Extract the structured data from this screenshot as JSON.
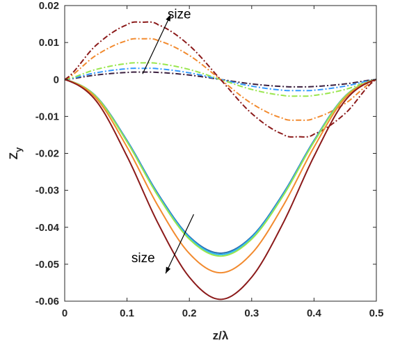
{
  "chart_data": {
    "type": "line",
    "title": "",
    "xlabel": "z/λ",
    "ylabel": "Z_y",
    "xlim": [
      0,
      0.5
    ],
    "ylim": [
      -0.06,
      0.02
    ],
    "xticks": [
      0,
      0.1,
      0.2,
      0.3,
      0.4,
      0.5
    ],
    "xtick_labels": [
      "0",
      "0.1",
      "0.2",
      "0.3",
      "0.4",
      "0.5"
    ],
    "yticks": [
      0.02,
      0.01,
      0,
      -0.01,
      -0.02,
      -0.03,
      -0.04,
      -0.05,
      -0.06
    ],
    "ytick_labels": [
      "0.02",
      "0.01",
      "0",
      "-0.01",
      "-0.02",
      "-0.03",
      "-0.04",
      "-0.05",
      "-0.06"
    ],
    "grid": false,
    "legend": "none",
    "series": [
      {
        "style": "dashdot",
        "color": "#3b1f3f",
        "x": [
          0,
          0.05,
          0.1,
          0.125,
          0.15,
          0.2,
          0.25,
          0.3,
          0.35,
          0.375,
          0.4,
          0.45,
          0.5
        ],
        "y": [
          0,
          0.0012,
          0.0019,
          0.002,
          0.0019,
          0.0012,
          0,
          -0.0012,
          -0.0019,
          -0.002,
          -0.0019,
          -0.0012,
          0
        ]
      },
      {
        "style": "dashdot",
        "color": "#3399ff",
        "x": [
          0,
          0.05,
          0.1,
          0.125,
          0.15,
          0.2,
          0.25,
          0.3,
          0.35,
          0.375,
          0.4,
          0.45,
          0.5
        ],
        "y": [
          0,
          0.0018,
          0.0029,
          0.003,
          0.0029,
          0.0018,
          0,
          -0.0018,
          -0.0029,
          -0.003,
          -0.0029,
          -0.0018,
          0
        ]
      },
      {
        "style": "dashdot",
        "color": "#99e64d",
        "x": [
          0,
          0.05,
          0.1,
          0.125,
          0.15,
          0.2,
          0.25,
          0.3,
          0.35,
          0.375,
          0.4,
          0.45,
          0.5
        ],
        "y": [
          0,
          0.0027,
          0.0043,
          0.0045,
          0.0043,
          0.0027,
          0,
          -0.0027,
          -0.0043,
          -0.0045,
          -0.0043,
          -0.0027,
          0
        ]
      },
      {
        "style": "dashdot",
        "color": "#f28a2e",
        "x": [
          0,
          0.05,
          0.1,
          0.125,
          0.15,
          0.2,
          0.25,
          0.3,
          0.35,
          0.375,
          0.4,
          0.45,
          0.5
        ],
        "y": [
          0,
          0.0065,
          0.0105,
          0.011,
          0.0105,
          0.0065,
          0,
          -0.0065,
          -0.0105,
          -0.011,
          -0.0105,
          -0.0065,
          0
        ]
      },
      {
        "style": "dashdot",
        "color": "#8b1a1a",
        "x": [
          0,
          0.05,
          0.1,
          0.125,
          0.15,
          0.2,
          0.25,
          0.3,
          0.35,
          0.375,
          0.4,
          0.45,
          0.5
        ],
        "y": [
          0,
          0.0092,
          0.0148,
          0.0155,
          0.0148,
          0.0092,
          0,
          -0.0092,
          -0.0148,
          -0.0155,
          -0.0148,
          -0.0092,
          0
        ]
      },
      {
        "style": "solid",
        "color": "#2b6fb0",
        "x": [
          0,
          0.05,
          0.1,
          0.15,
          0.2,
          0.25,
          0.3,
          0.35,
          0.4,
          0.45,
          0.5
        ],
        "y": [
          0,
          -0.0045,
          -0.0165,
          -0.031,
          -0.0425,
          -0.047,
          -0.0425,
          -0.031,
          -0.0165,
          -0.0045,
          0
        ]
      },
      {
        "style": "solid",
        "color": "#33bbee",
        "x": [
          0,
          0.05,
          0.1,
          0.15,
          0.2,
          0.25,
          0.3,
          0.35,
          0.4,
          0.45,
          0.5
        ],
        "y": [
          0,
          -0.0046,
          -0.0167,
          -0.0313,
          -0.0428,
          -0.0474,
          -0.0428,
          -0.0313,
          -0.0167,
          -0.0046,
          0
        ]
      },
      {
        "style": "solid",
        "color": "#99e64d",
        "x": [
          0,
          0.05,
          0.1,
          0.15,
          0.2,
          0.25,
          0.3,
          0.35,
          0.4,
          0.45,
          0.5
        ],
        "y": [
          0,
          -0.0046,
          -0.0169,
          -0.0316,
          -0.0432,
          -0.0478,
          -0.0432,
          -0.0316,
          -0.0169,
          -0.0046,
          0
        ]
      },
      {
        "style": "solid",
        "color": "#f28a2e",
        "x": [
          0,
          0.05,
          0.1,
          0.15,
          0.2,
          0.25,
          0.3,
          0.35,
          0.4,
          0.45,
          0.5
        ],
        "y": [
          0,
          -0.005,
          -0.0183,
          -0.0343,
          -0.0471,
          -0.0523,
          -0.0471,
          -0.0343,
          -0.0183,
          -0.005,
          0
        ]
      },
      {
        "style": "solid",
        "color": "#8b1a1a",
        "x": [
          0,
          0.05,
          0.1,
          0.15,
          0.2,
          0.25,
          0.3,
          0.35,
          0.4,
          0.45,
          0.5
        ],
        "y": [
          0,
          -0.0057,
          -0.0208,
          -0.039,
          -0.0535,
          -0.0595,
          -0.0535,
          -0.039,
          -0.0208,
          -0.0057,
          0
        ]
      }
    ],
    "annotations": [
      {
        "text": "size",
        "x": 0.165,
        "y": 0.0165,
        "arrow_from": [
          0.125,
          0.0015
        ],
        "arrow_to": [
          0.17,
          0.0175
        ]
      },
      {
        "text": "size",
        "x": 0.107,
        "y": -0.0495,
        "arrow_from": [
          0.207,
          -0.0365
        ],
        "arrow_to": [
          0.162,
          -0.0525
        ]
      }
    ]
  }
}
